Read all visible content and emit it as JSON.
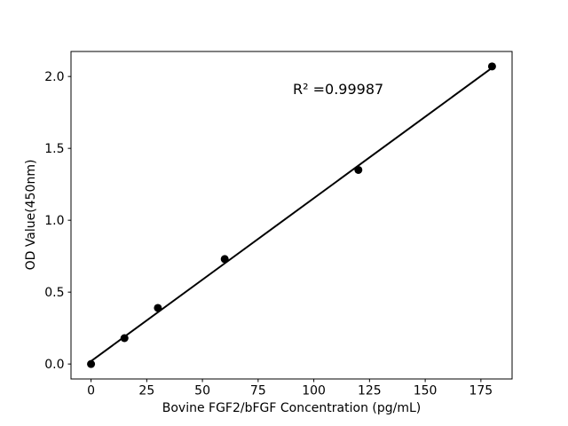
{
  "chart_data": {
    "type": "scatter",
    "title": "",
    "xlabel": "Bovine FGF2/bFGF Concentration (pg/mL)",
    "ylabel": "OD Value(450nm)",
    "x": [
      0,
      15,
      30,
      60,
      120,
      180
    ],
    "y": [
      0.0,
      0.18,
      0.39,
      0.73,
      1.35,
      2.07
    ],
    "fit_line": {
      "x": [
        0,
        180
      ],
      "y": [
        0.02,
        2.06
      ]
    },
    "annotation": {
      "text": "R² =0.99987",
      "x": 91,
      "y": 1.91
    },
    "xticks": [
      0,
      25,
      50,
      75,
      100,
      125,
      150,
      175
    ],
    "xtick_labels": [
      "0",
      "25",
      "50",
      "75",
      "100",
      "125",
      "150",
      "175"
    ],
    "yticks": [
      0.0,
      0.5,
      1.0,
      1.5,
      2.0
    ],
    "ytick_labels": [
      "0.0",
      "0.5",
      "1.0",
      "1.5",
      "2.0"
    ],
    "xlim": [
      -9,
      189
    ],
    "ylim": [
      -0.104,
      2.174
    ],
    "grid": false,
    "legend": null,
    "colors": {
      "background": "#ffffff",
      "axis": "#000000",
      "tick_text": "#000000",
      "point": "#000000",
      "line": "#000000"
    }
  }
}
